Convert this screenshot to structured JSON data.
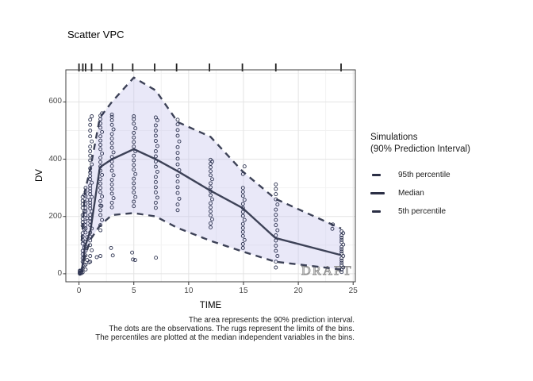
{
  "title": "Scatter VPC",
  "legend": {
    "title_line1": "Simulations",
    "title_line2": "(90% Prediction Interval)",
    "items": [
      {
        "label": "95th percentile",
        "key": "dashed"
      },
      {
        "label": "Median",
        "key": "solid"
      },
      {
        "label": "5th percentile",
        "key": "dashed"
      }
    ]
  },
  "watermark": "DRAFT",
  "caption_lines": [
    "The area represents the 90% prediction interval.",
    "The dots are the observations. The rugs represent the limits of the bins.",
    "The percentiles are plotted at the median independent variables in the bins."
  ],
  "colors": {
    "ribbon": "#cac7ef",
    "line": "#3d4257",
    "point": "#2f3552",
    "grid_major": "#e3e3e3",
    "grid_minor": "#f1f1f1",
    "axis_text": "#4a4a4a",
    "border": "#3f3f3f",
    "rug": "#1f1f1f",
    "watermark": "#909090"
  },
  "chart_data": {
    "type": "line",
    "subtype": "visual-predictive-check",
    "title": "Scatter VPC",
    "xlabel": "TIME",
    "ylabel": "DV",
    "x_ticks": [
      0,
      5,
      10,
      15,
      20,
      25
    ],
    "x_minor": [
      2.5,
      7.5,
      12.5,
      17.5,
      22.5
    ],
    "y_ticks": [
      0,
      200,
      400,
      600
    ],
    "y_minor": [
      100,
      300,
      500,
      700
    ],
    "xlim": [
      -1.2,
      25.2
    ],
    "ylim": [
      -28,
      712
    ],
    "grid": true,
    "legend_position": "right",
    "ribbon": {
      "upper_series": "95th percentile",
      "lower_series": "5th percentile",
      "meaning": "90% prediction interval"
    },
    "series": [
      {
        "name": "95th percentile",
        "style": "dashed",
        "points": [
          [
            0.25,
            115
          ],
          [
            0.55,
            290
          ],
          [
            1.05,
            370
          ],
          [
            1.9,
            545
          ],
          [
            3,
            600
          ],
          [
            5,
            685
          ],
          [
            7,
            640
          ],
          [
            9,
            530
          ],
          [
            12,
            478
          ],
          [
            14.9,
            358
          ],
          [
            17.9,
            262
          ],
          [
            23.9,
            158
          ]
        ]
      },
      {
        "name": "Median",
        "style": "solid",
        "points": [
          [
            0.25,
            10
          ],
          [
            0.55,
            95
          ],
          [
            1.05,
            152
          ],
          [
            1.9,
            372
          ],
          [
            3,
            400
          ],
          [
            5,
            435
          ],
          [
            7,
            400
          ],
          [
            9,
            358
          ],
          [
            12,
            290
          ],
          [
            14.9,
            230
          ],
          [
            17.9,
            125
          ],
          [
            23.9,
            65
          ]
        ]
      },
      {
        "name": "5th percentile",
        "style": "dashed",
        "points": [
          [
            0.25,
            5
          ],
          [
            0.55,
            60
          ],
          [
            1.05,
            120
          ],
          [
            1.9,
            168
          ],
          [
            3,
            205
          ],
          [
            5,
            212
          ],
          [
            7,
            200
          ],
          [
            9,
            160
          ],
          [
            12,
            115
          ],
          [
            14.9,
            78
          ],
          [
            17.9,
            42
          ],
          [
            23.9,
            15
          ]
        ]
      }
    ],
    "rug_times": [
      0,
      0.35,
      0.6,
      1.15,
      2.05,
      3.05,
      4.9,
      6.9,
      8.9,
      11.9,
      14.9,
      17.95,
      23.9
    ],
    "observations": [
      {
        "t": 0.08,
        "values": [
          0,
          1,
          2,
          3,
          4,
          5,
          6,
          7,
          9,
          11
        ]
      },
      {
        "t": 0.33,
        "values": [
          5,
          18,
          30,
          42,
          55,
          68,
          80,
          92,
          105,
          118,
          130,
          142,
          155,
          168,
          180,
          192,
          205,
          218,
          230,
          243,
          255,
          268,
          275
        ]
      },
      {
        "t": 0.6,
        "values": [
          15,
          32,
          48,
          64,
          80,
          96,
          112,
          128,
          144,
          158,
          170,
          182,
          194,
          206,
          218,
          230,
          244,
          258,
          272,
          286,
          300
        ]
      },
      {
        "t": 1.02,
        "values": [
          42,
          62,
          82,
          100,
          116,
          130,
          144,
          158,
          170,
          182,
          194,
          206,
          218,
          228,
          238,
          248,
          258,
          268,
          278,
          288,
          298,
          308,
          318,
          330,
          342,
          354,
          368,
          382,
          396,
          412,
          428,
          444,
          462,
          480,
          500,
          520,
          538,
          550
        ]
      },
      {
        "t": 1.95,
        "values": [
          152,
          170,
          188,
          205,
          222,
          238,
          254,
          270,
          285,
          300,
          315,
          330,
          345,
          360,
          375,
          390,
          405,
          420,
          435,
          450,
          465,
          480,
          495,
          510,
          525,
          540,
          552,
          560
        ]
      },
      {
        "t": 3.0,
        "values": [
          232,
          248,
          264,
          280,
          296,
          312,
          328,
          344,
          360,
          376,
          392,
          408,
          424,
          440,
          456,
          472,
          488,
          504,
          520,
          536,
          548,
          556
        ]
      },
      {
        "t": 5.0,
        "values": [
          236,
          252,
          268,
          284,
          300,
          316,
          332,
          348,
          364,
          380,
          396,
          412,
          428,
          444,
          460,
          476,
          492,
          508,
          524,
          540,
          550
        ]
      },
      {
        "t": 7.0,
        "values": [
          230,
          248,
          266,
          284,
          302,
          320,
          338,
          356,
          374,
          392,
          410,
          428,
          446,
          464,
          482,
          500,
          518,
          536,
          546
        ]
      },
      {
        "t": 9.0,
        "values": [
          222,
          242,
          262,
          282,
          302,
          322,
          342,
          362,
          382,
          402,
          422,
          442,
          462,
          482,
          502,
          522,
          538
        ]
      },
      {
        "t": 12.0,
        "values": [
          162,
          176,
          190,
          204,
          218,
          232,
          246,
          260,
          274,
          288,
          302,
          316,
          330,
          344,
          358,
          372,
          384,
          392,
          398
        ]
      },
      {
        "t": 14.95,
        "values": [
          90,
          104,
          118,
          132,
          146,
          160,
          174,
          188,
          202,
          216,
          230,
          244,
          258,
          272,
          286,
          300,
          348,
          375
        ]
      },
      {
        "t": 17.95,
        "values": [
          22,
          42,
          62,
          80,
          98,
          116,
          134,
          152,
          170,
          188,
          206,
          224,
          242,
          260,
          278,
          296,
          312
        ]
      },
      {
        "t": 23.95,
        "values": [
          6,
          14,
          22,
          30,
          38,
          46,
          54,
          62,
          70,
          78,
          86,
          94,
          102,
          110,
          118,
          126,
          134,
          142,
          148
        ]
      }
    ],
    "outlier_points": [
      [
        0.92,
        40
      ],
      [
        1.62,
        58
      ],
      [
        1.95,
        62
      ],
      [
        2.05,
        237
      ],
      [
        2.92,
        90
      ],
      [
        3.08,
        64
      ],
      [
        4.85,
        74
      ],
      [
        4.92,
        50
      ],
      [
        5.12,
        48
      ],
      [
        7.02,
        56
      ],
      [
        23.1,
        157
      ],
      [
        23.15,
        172
      ]
    ]
  }
}
